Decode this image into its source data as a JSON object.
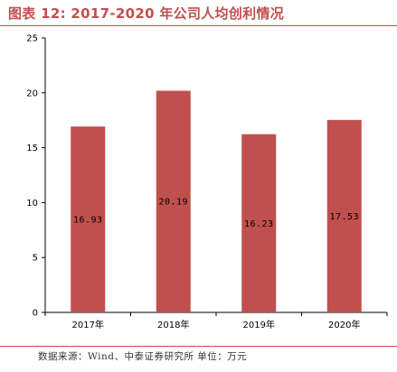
{
  "header": {
    "title": "图表 12: 2017-2020 年公司人均创利情况"
  },
  "footer": {
    "source": "数据来源：Wind、中泰证券研究所   单位：万元"
  },
  "colors": {
    "accent": "#c0504d",
    "bar": "#c0504d",
    "axis": "#000000"
  },
  "chart_data": {
    "type": "bar",
    "categories": [
      "2017年",
      "2018年",
      "2019年",
      "2020年"
    ],
    "values": [
      16.93,
      20.19,
      16.23,
      17.53
    ],
    "data_labels": [
      "16.93",
      "20.19",
      "16.23",
      "17.53"
    ],
    "title": "图表 12: 2017-2020 年公司人均创利情况",
    "xlabel": "",
    "ylabel": "",
    "ylim": [
      0,
      25
    ],
    "yticks": [
      0,
      5,
      10,
      15,
      20,
      25
    ],
    "grid": false,
    "legend": "none"
  }
}
